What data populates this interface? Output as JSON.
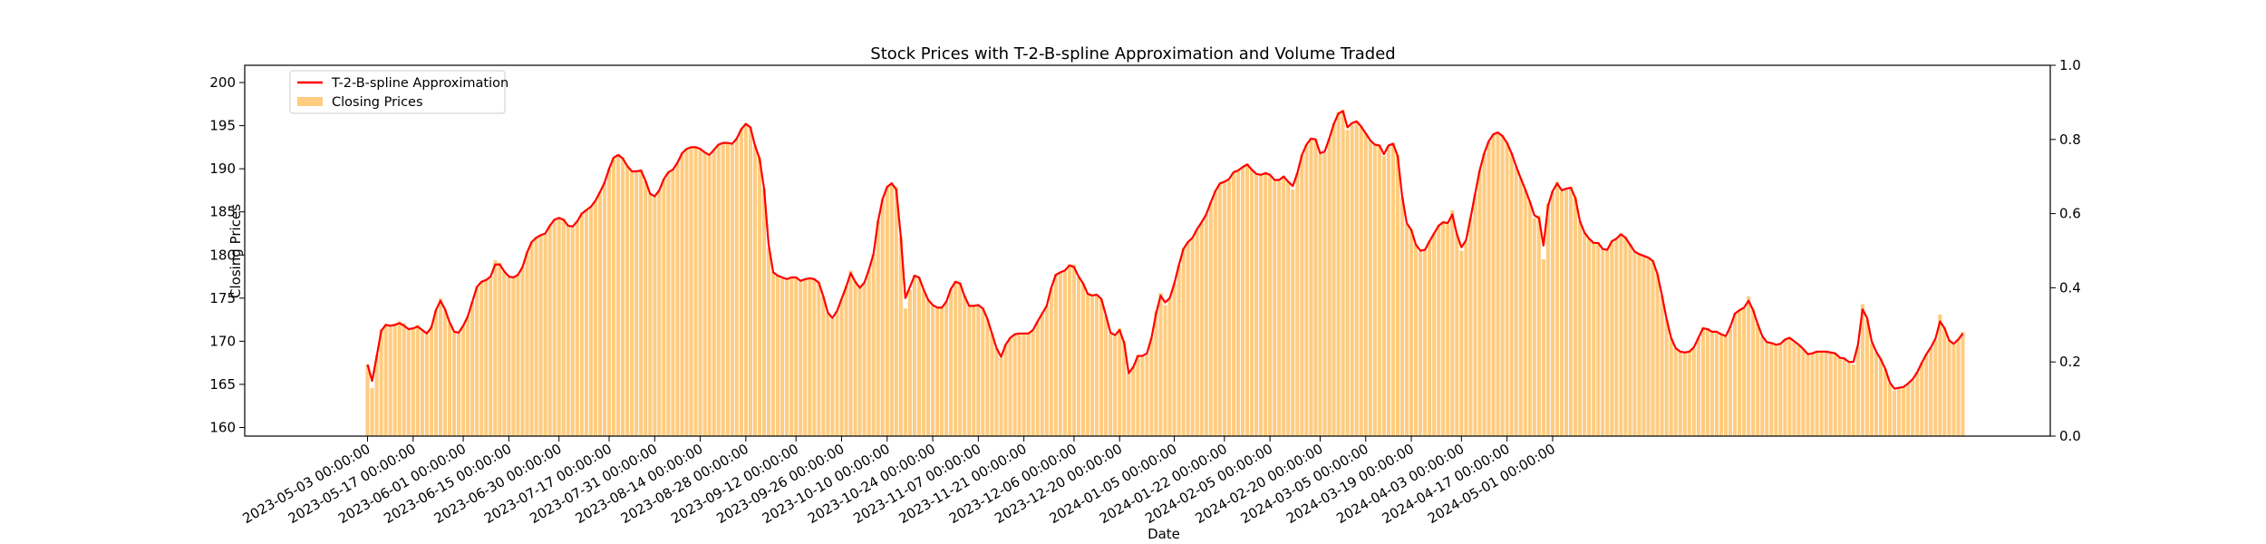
{
  "chart_data": {
    "type": "bar",
    "title": "Stock Prices with T-2-B-spline Approximation and Volume Traded",
    "xlabel": "Date",
    "ylabel": "Closing Prices",
    "ylabel_right": "",
    "ylim": [
      159,
      202
    ],
    "y2lim": [
      0.0,
      1.0
    ],
    "grid": false,
    "legend_position": "upper left",
    "colors": {
      "bars": "#ffcc80",
      "line": "#ff0000",
      "ylabel": "#ffa500",
      "axes": "#000000"
    },
    "start_date": "2023-05-03",
    "business_days_only": true,
    "series": [
      {
        "name": "Closing Prices",
        "kind": "bar",
        "values": [
          167.3,
          164.6,
          168.4,
          171.4,
          172.0,
          171.8,
          172.0,
          172.3,
          172.1,
          171.4,
          171.5,
          171.9,
          171.3,
          170.8,
          171.7,
          173.6,
          175.0,
          173.7,
          172.1,
          171.0,
          171.0,
          171.8,
          172.9,
          174.6,
          176.3,
          176.9,
          177.1,
          177.5,
          179.4,
          179.1,
          178.1,
          177.4,
          177.3,
          177.7,
          178.6,
          180.4,
          181.5,
          182.1,
          182.3,
          182.4,
          183.4,
          184.1,
          184.4,
          184.2,
          183.4,
          183.2,
          183.9,
          184.9,
          185.3,
          185.6,
          186.3,
          187.3,
          188.4,
          190.0,
          191.3,
          191.7,
          191.3,
          190.3,
          189.6,
          189.7,
          189.9,
          188.6,
          187.1,
          186.7,
          187.5,
          188.8,
          189.6,
          189.9,
          190.7,
          191.8,
          192.4,
          192.6,
          192.6,
          192.4,
          191.9,
          191.5,
          192.2,
          192.8,
          193.0,
          193.0,
          192.9,
          193.5,
          194.6,
          195.3,
          194.9,
          192.7,
          191.3,
          187.7,
          180.8,
          178.0,
          177.6,
          177.4,
          177.2,
          177.5,
          177.5,
          176.9,
          177.2,
          177.4,
          177.3,
          176.9,
          175.2,
          173.3,
          172.6,
          173.5,
          174.9,
          176.4,
          178.2,
          177.0,
          176.2,
          176.8,
          178.3,
          180.1,
          184.0,
          186.5,
          187.9,
          188.4,
          187.9,
          182.1,
          173.8,
          176.0,
          177.7,
          177.4,
          175.9,
          174.8,
          174.2,
          173.8,
          173.9,
          174.6,
          176.1,
          177.0,
          176.8,
          175.3,
          174.1,
          174.1,
          174.2,
          173.9,
          172.6,
          170.9,
          169.2,
          168.1,
          169.6,
          170.4,
          170.9,
          170.9,
          170.9,
          170.9,
          171.3,
          172.3,
          173.2,
          174.1,
          176.2,
          177.8,
          178.0,
          178.1,
          178.9,
          178.9,
          177.4,
          176.7,
          175.5,
          175.2,
          175.4,
          174.9,
          172.9,
          170.9,
          170.6,
          171.5,
          170.0,
          166.3,
          167.1,
          168.4,
          168.2,
          168.5,
          170.4,
          173.5,
          175.6,
          174.2,
          174.9,
          176.7,
          178.8,
          180.8,
          181.5,
          182.0,
          183.0,
          183.8,
          184.7,
          186.1,
          187.4,
          188.3,
          188.5,
          188.7,
          189.6,
          189.8,
          190.2,
          190.6,
          189.9,
          189.4,
          189.3,
          189.5,
          189.3,
          188.6,
          188.6,
          189.2,
          188.5,
          187.6,
          189.5,
          191.6,
          192.8,
          193.6,
          193.5,
          191.7,
          191.9,
          193.5,
          195.3,
          196.6,
          196.8,
          194.5,
          195.2,
          195.5,
          194.9,
          194.1,
          193.3,
          192.8,
          192.8,
          191.5,
          192.6,
          193.0,
          191.6,
          186.7,
          183.6,
          183.0,
          181.2,
          180.4,
          180.5,
          181.6,
          182.5,
          183.4,
          183.9,
          183.6,
          185.2,
          182.5,
          180.5,
          181.5,
          184.3,
          187.1,
          189.8,
          191.8,
          193.2,
          194.0,
          194.3,
          193.9,
          193.1,
          191.8,
          190.3,
          188.9,
          187.6,
          186.2,
          184.3,
          184.6,
          179.5,
          186.0,
          187.4,
          188.5,
          187.4,
          187.7,
          187.9,
          186.7,
          183.9,
          182.6,
          181.9,
          181.4,
          181.5,
          180.7,
          180.5,
          181.6,
          181.9,
          182.5,
          182.1,
          181.3,
          180.4,
          180.1,
          179.9,
          179.7,
          179.4,
          177.8,
          175.3,
          172.6,
          170.3,
          169.1,
          168.8,
          168.7,
          168.8,
          169.2,
          170.4,
          171.6,
          171.5,
          171.1,
          171.1,
          170.8,
          170.5,
          171.7,
          173.3,
          173.6,
          173.8,
          175.2,
          173.7,
          172.0,
          170.5,
          169.9,
          169.8,
          169.6,
          169.7,
          170.2,
          170.5,
          169.9,
          169.6,
          169.1,
          168.4,
          168.6,
          168.8,
          168.8,
          168.9,
          168.7,
          168.6,
          168.1,
          168.0,
          167.5,
          167.3,
          169.4,
          174.3,
          172.5,
          169.8,
          168.7,
          168.0,
          166.8,
          165.1,
          164.3,
          164.5,
          164.7,
          165.0,
          165.5,
          166.4,
          167.5,
          168.5,
          169.2,
          170.2,
          173.1,
          171.6,
          170.1,
          169.6,
          170.2,
          171.1
        ]
      },
      {
        "name": "T-2-B-spline Approximation",
        "kind": "line",
        "values": [
          167.3,
          165.4,
          168.2,
          171.2,
          171.9,
          171.8,
          171.9,
          172.1,
          171.8,
          171.4,
          171.5,
          171.7,
          171.3,
          170.9,
          171.6,
          173.6,
          174.7,
          173.7,
          172.2,
          171.1,
          171.0,
          171.8,
          172.9,
          174.6,
          176.3,
          176.9,
          177.1,
          177.5,
          178.9,
          178.9,
          178.1,
          177.5,
          177.4,
          177.7,
          178.6,
          180.3,
          181.5,
          182.0,
          182.3,
          182.5,
          183.4,
          184.1,
          184.3,
          184.1,
          183.4,
          183.3,
          183.9,
          184.8,
          185.2,
          185.6,
          186.3,
          187.3,
          188.4,
          190.0,
          191.3,
          191.6,
          191.2,
          190.3,
          189.7,
          189.7,
          189.8,
          188.6,
          187.1,
          186.8,
          187.5,
          188.8,
          189.6,
          189.9,
          190.7,
          191.8,
          192.3,
          192.5,
          192.5,
          192.3,
          191.9,
          191.6,
          192.2,
          192.8,
          193.0,
          193.0,
          192.9,
          193.5,
          194.6,
          195.2,
          194.8,
          192.7,
          191.2,
          187.7,
          181.2,
          178.0,
          177.6,
          177.4,
          177.2,
          177.4,
          177.4,
          177.0,
          177.2,
          177.3,
          177.2,
          176.8,
          175.2,
          173.3,
          172.7,
          173.5,
          174.9,
          176.3,
          177.9,
          176.9,
          176.2,
          176.8,
          178.3,
          180.1,
          183.9,
          186.5,
          187.9,
          188.3,
          187.6,
          182.1,
          175.0,
          176.3,
          177.6,
          177.4,
          176.0,
          174.8,
          174.2,
          173.9,
          173.9,
          174.6,
          176.1,
          176.9,
          176.7,
          175.2,
          174.1,
          174.1,
          174.2,
          173.8,
          172.6,
          170.9,
          169.2,
          168.2,
          169.6,
          170.4,
          170.8,
          170.9,
          170.9,
          170.9,
          171.3,
          172.3,
          173.2,
          174.1,
          176.2,
          177.7,
          178.0,
          178.2,
          178.8,
          178.6,
          177.5,
          176.7,
          175.5,
          175.3,
          175.4,
          174.9,
          173.0,
          171.0,
          170.7,
          171.3,
          169.8,
          166.3,
          167.0,
          168.3,
          168.3,
          168.6,
          170.4,
          173.2,
          175.3,
          174.5,
          175.0,
          176.7,
          178.8,
          180.7,
          181.5,
          182.0,
          183.0,
          183.8,
          184.7,
          186.1,
          187.4,
          188.3,
          188.5,
          188.8,
          189.6,
          189.8,
          190.2,
          190.5,
          189.9,
          189.4,
          189.3,
          189.5,
          189.3,
          188.7,
          188.7,
          189.1,
          188.5,
          188.0,
          189.5,
          191.6,
          192.8,
          193.5,
          193.4,
          191.8,
          192.0,
          193.5,
          195.2,
          196.4,
          196.7,
          194.8,
          195.3,
          195.5,
          194.9,
          194.1,
          193.3,
          192.8,
          192.7,
          191.7,
          192.7,
          192.9,
          191.5,
          186.8,
          183.7,
          182.9,
          181.2,
          180.5,
          180.6,
          181.6,
          182.5,
          183.4,
          183.8,
          183.7,
          184.7,
          182.4,
          180.9,
          181.7,
          184.3,
          187.1,
          189.8,
          191.8,
          193.2,
          194.0,
          194.2,
          193.8,
          193.0,
          191.8,
          190.3,
          188.9,
          187.6,
          186.2,
          184.6,
          184.3,
          181.1,
          185.7,
          187.4,
          188.3,
          187.5,
          187.7,
          187.8,
          186.6,
          183.9,
          182.6,
          181.9,
          181.4,
          181.4,
          180.7,
          180.6,
          181.6,
          181.9,
          182.4,
          182.0,
          181.2,
          180.4,
          180.1,
          179.9,
          179.7,
          179.3,
          177.8,
          175.3,
          172.6,
          170.4,
          169.2,
          168.8,
          168.7,
          168.8,
          169.3,
          170.4,
          171.5,
          171.4,
          171.1,
          171.1,
          170.8,
          170.6,
          171.7,
          173.2,
          173.6,
          173.9,
          174.7,
          173.6,
          172.0,
          170.6,
          169.9,
          169.8,
          169.6,
          169.7,
          170.2,
          170.4,
          170.0,
          169.6,
          169.1,
          168.5,
          168.6,
          168.8,
          168.8,
          168.8,
          168.7,
          168.6,
          168.1,
          168.0,
          167.6,
          167.6,
          169.6,
          173.7,
          172.7,
          170.0,
          168.8,
          167.9,
          166.8,
          165.2,
          164.5,
          164.6,
          164.7,
          165.1,
          165.6,
          166.4,
          167.5,
          168.5,
          169.3,
          170.3,
          172.3,
          171.5,
          170.1,
          169.7,
          170.2,
          170.9
        ]
      }
    ],
    "x_ticks": [
      "2023-05-03 00:00:00",
      "2023-05-17 00:00:00",
      "2023-06-01 00:00:00",
      "2023-06-15 00:00:00",
      "2023-06-30 00:00:00",
      "2023-07-17 00:00:00",
      "2023-07-31 00:00:00",
      "2023-08-14 00:00:00",
      "2023-08-28 00:00:00",
      "2023-09-12 00:00:00",
      "2023-09-26 00:00:00",
      "2023-10-10 00:00:00",
      "2023-10-24 00:00:00",
      "2023-11-07 00:00:00",
      "2023-11-21 00:00:00",
      "2023-12-06 00:00:00",
      "2023-12-20 00:00:00",
      "2024-01-05 00:00:00",
      "2024-01-22 00:00:00",
      "2024-02-05 00:00:00",
      "2024-02-20 00:00:00",
      "2024-03-05 00:00:00",
      "2024-03-19 00:00:00",
      "2024-04-03 00:00:00",
      "2024-04-17 00:00:00",
      "2024-05-01 00:00:00"
    ],
    "y_ticks": [
      "160",
      "165",
      "170",
      "175",
      "180",
      "185",
      "190",
      "195",
      "200"
    ],
    "y2_ticks": [
      "0.0",
      "0.2",
      "0.4",
      "0.6",
      "0.8",
      "1.0"
    ],
    "legend": [
      {
        "label": "T-2-B-spline Approximation",
        "kind": "line"
      },
      {
        "label": "Closing Prices",
        "kind": "bar"
      }
    ]
  }
}
